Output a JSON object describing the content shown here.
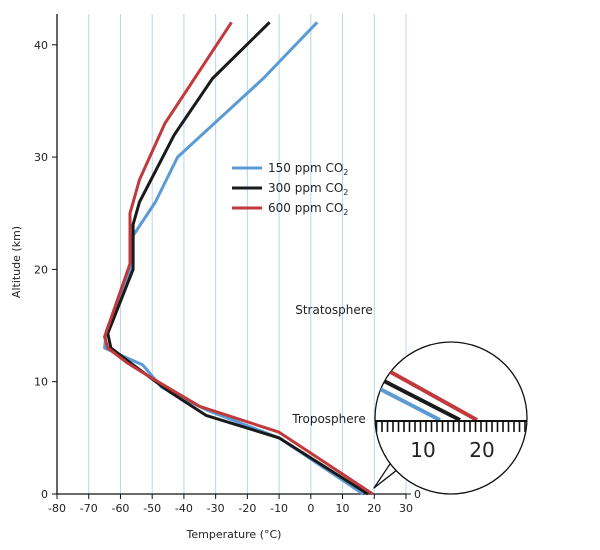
{
  "chart_data": {
    "type": "line",
    "xlabel": "Temperature (°C)",
    "ylabel": "Altitude (km)",
    "xlim": [
      -80,
      30
    ],
    "ylim": [
      0,
      42
    ],
    "x_ticks": [
      -80,
      -70,
      -60,
      -50,
      -40,
      -30,
      -20,
      -10,
      0,
      10,
      20,
      30
    ],
    "y_ticks": [
      0,
      10,
      20,
      30,
      40
    ],
    "grid": "vertical lines at each x tick",
    "legend": "right, mid-height",
    "legend_entries": [
      {
        "base": "150 ppm CO",
        "sub": "2"
      },
      {
        "base": "300 ppm CO",
        "sub": "2"
      },
      {
        "base": "600 ppm CO",
        "sub": "2"
      }
    ],
    "series": [
      {
        "label": "150 ppm CO2",
        "color": "#5b9bd5",
        "points": [
          [
            16.5,
            0
          ],
          [
            -10,
            5
          ],
          [
            -33,
            7.5
          ],
          [
            -47,
            9.5
          ],
          [
            -53,
            11.5
          ],
          [
            -65,
            13
          ],
          [
            -64.5,
            14.5
          ],
          [
            -59,
            18.5
          ],
          [
            -56,
            20.5
          ],
          [
            -56,
            23
          ],
          [
            -49,
            26
          ],
          [
            -42,
            30
          ],
          [
            -15,
            37
          ],
          [
            2,
            42
          ]
        ]
      },
      {
        "label": "300 ppm CO2",
        "color": "#1a1a1a",
        "points": [
          [
            18,
            0
          ],
          [
            -10,
            5
          ],
          [
            -33,
            7
          ],
          [
            -45,
            9.2
          ],
          [
            -57,
            11.7
          ],
          [
            -63,
            13
          ],
          [
            -64,
            14.3
          ],
          [
            -56,
            20
          ],
          [
            -56,
            24
          ],
          [
            -54,
            26
          ],
          [
            -43,
            32
          ],
          [
            -31,
            37
          ],
          [
            -13,
            42
          ]
        ]
      },
      {
        "label": "600 ppm CO2",
        "color": "#c0393b",
        "points": [
          [
            19.5,
            0
          ],
          [
            -10,
            5.5
          ],
          [
            -35,
            7.8
          ],
          [
            -50,
            10.3
          ],
          [
            -58,
            11.7
          ],
          [
            -64,
            13
          ],
          [
            -65,
            14
          ],
          [
            -57,
            20.5
          ],
          [
            -57,
            25
          ],
          [
            -54,
            28
          ],
          [
            -46,
            33
          ],
          [
            -25,
            42
          ]
        ]
      }
    ],
    "annotations": {
      "stratosphere": "Stratosphere",
      "troposphere": "Troposphere",
      "axis_zero": "0",
      "zoom_tick_labels": [
        "10",
        "20"
      ]
    }
  }
}
